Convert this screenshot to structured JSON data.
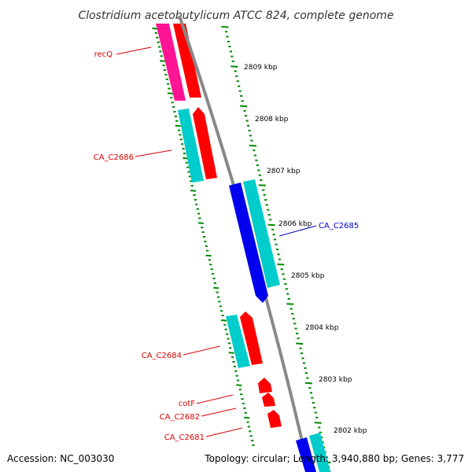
{
  "title": "Clostridium acetobutylicum ATCC 824, complete genome",
  "footer": {
    "accession": "Accession: NC_003030",
    "topology": "Topology: circular; Length: 3,940,880 bp; Genes: 3,777"
  },
  "colors": {
    "label_forward": "#dd0000",
    "label_reverse": "#0000cc",
    "tick": "#008800",
    "backbone": "#888888"
  },
  "scale_labels": [
    {
      "name": "kbp-2809",
      "text": "2809 kbp"
    },
    {
      "name": "kbp-2808",
      "text": "2808 kbp"
    },
    {
      "name": "kbp-2807",
      "text": "2807 kbp"
    },
    {
      "name": "kbp-2806",
      "text": "2806 kbp"
    },
    {
      "name": "kbp-2805",
      "text": "2805 kbp"
    },
    {
      "name": "kbp-2804",
      "text": "2804 kbp"
    },
    {
      "name": "kbp-2803",
      "text": "2803 kbp"
    },
    {
      "name": "kbp-2802",
      "text": "2802 kbp"
    }
  ],
  "gene_labels": [
    {
      "name": "recQ",
      "text": "recQ"
    },
    {
      "name": "CA_C2686",
      "text": "CA_C2686"
    },
    {
      "name": "CA_C2685",
      "text": "CA_C2685"
    },
    {
      "name": "CA_C2684",
      "text": "CA_C2684"
    },
    {
      "name": "cotF",
      "text": "cotF"
    },
    {
      "name": "CA_C2682",
      "text": "CA_C2682"
    },
    {
      "name": "CA_C2681",
      "text": "CA_C2681"
    }
  ]
}
